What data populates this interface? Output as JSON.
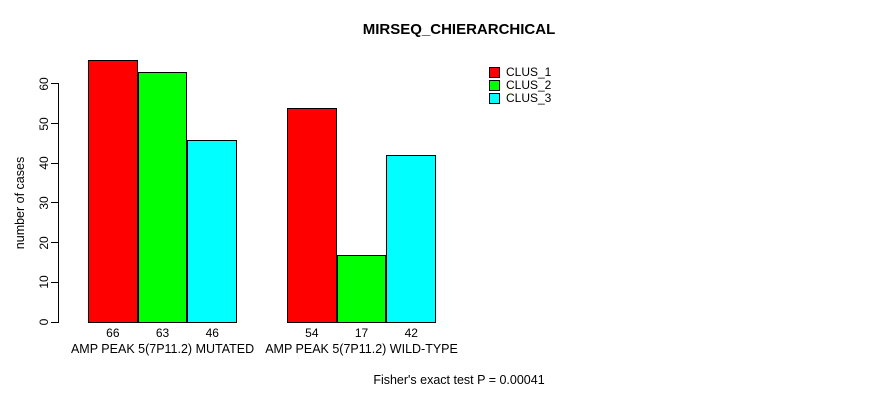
{
  "chart_data": {
    "type": "bar",
    "title": "MIRSEQ_CHIERARCHICAL",
    "ylabel": "number of cases",
    "xlabel": "",
    "categories": [
      "AMP PEAK 5(7P11.2) MUTATED",
      "AMP PEAK 5(7P11.2) WILD-TYPE"
    ],
    "series": [
      {
        "name": "CLUS_1",
        "color": "#FF0000",
        "values": [
          66,
          54
        ]
      },
      {
        "name": "CLUS_2",
        "color": "#00FF00",
        "values": [
          63,
          17
        ]
      },
      {
        "name": "CLUS_3",
        "color": "#00FFFF",
        "values": [
          46,
          42
        ]
      }
    ],
    "bar_value_labels": [
      [
        66,
        63,
        46
      ],
      [
        54,
        17,
        42
      ]
    ],
    "yticks": [
      0,
      10,
      20,
      30,
      40,
      50,
      60
    ],
    "ylim": [
      0,
      66
    ],
    "grid": false,
    "legend": {
      "position": "top-right",
      "entries": [
        "CLUS_1",
        "CLUS_2",
        "CLUS_3"
      ]
    },
    "annotation": "Fisher's exact test P = 0.00041",
    "colors": {
      "background": "#FFFFFF",
      "axis": "#000000",
      "text": "#000000"
    }
  }
}
